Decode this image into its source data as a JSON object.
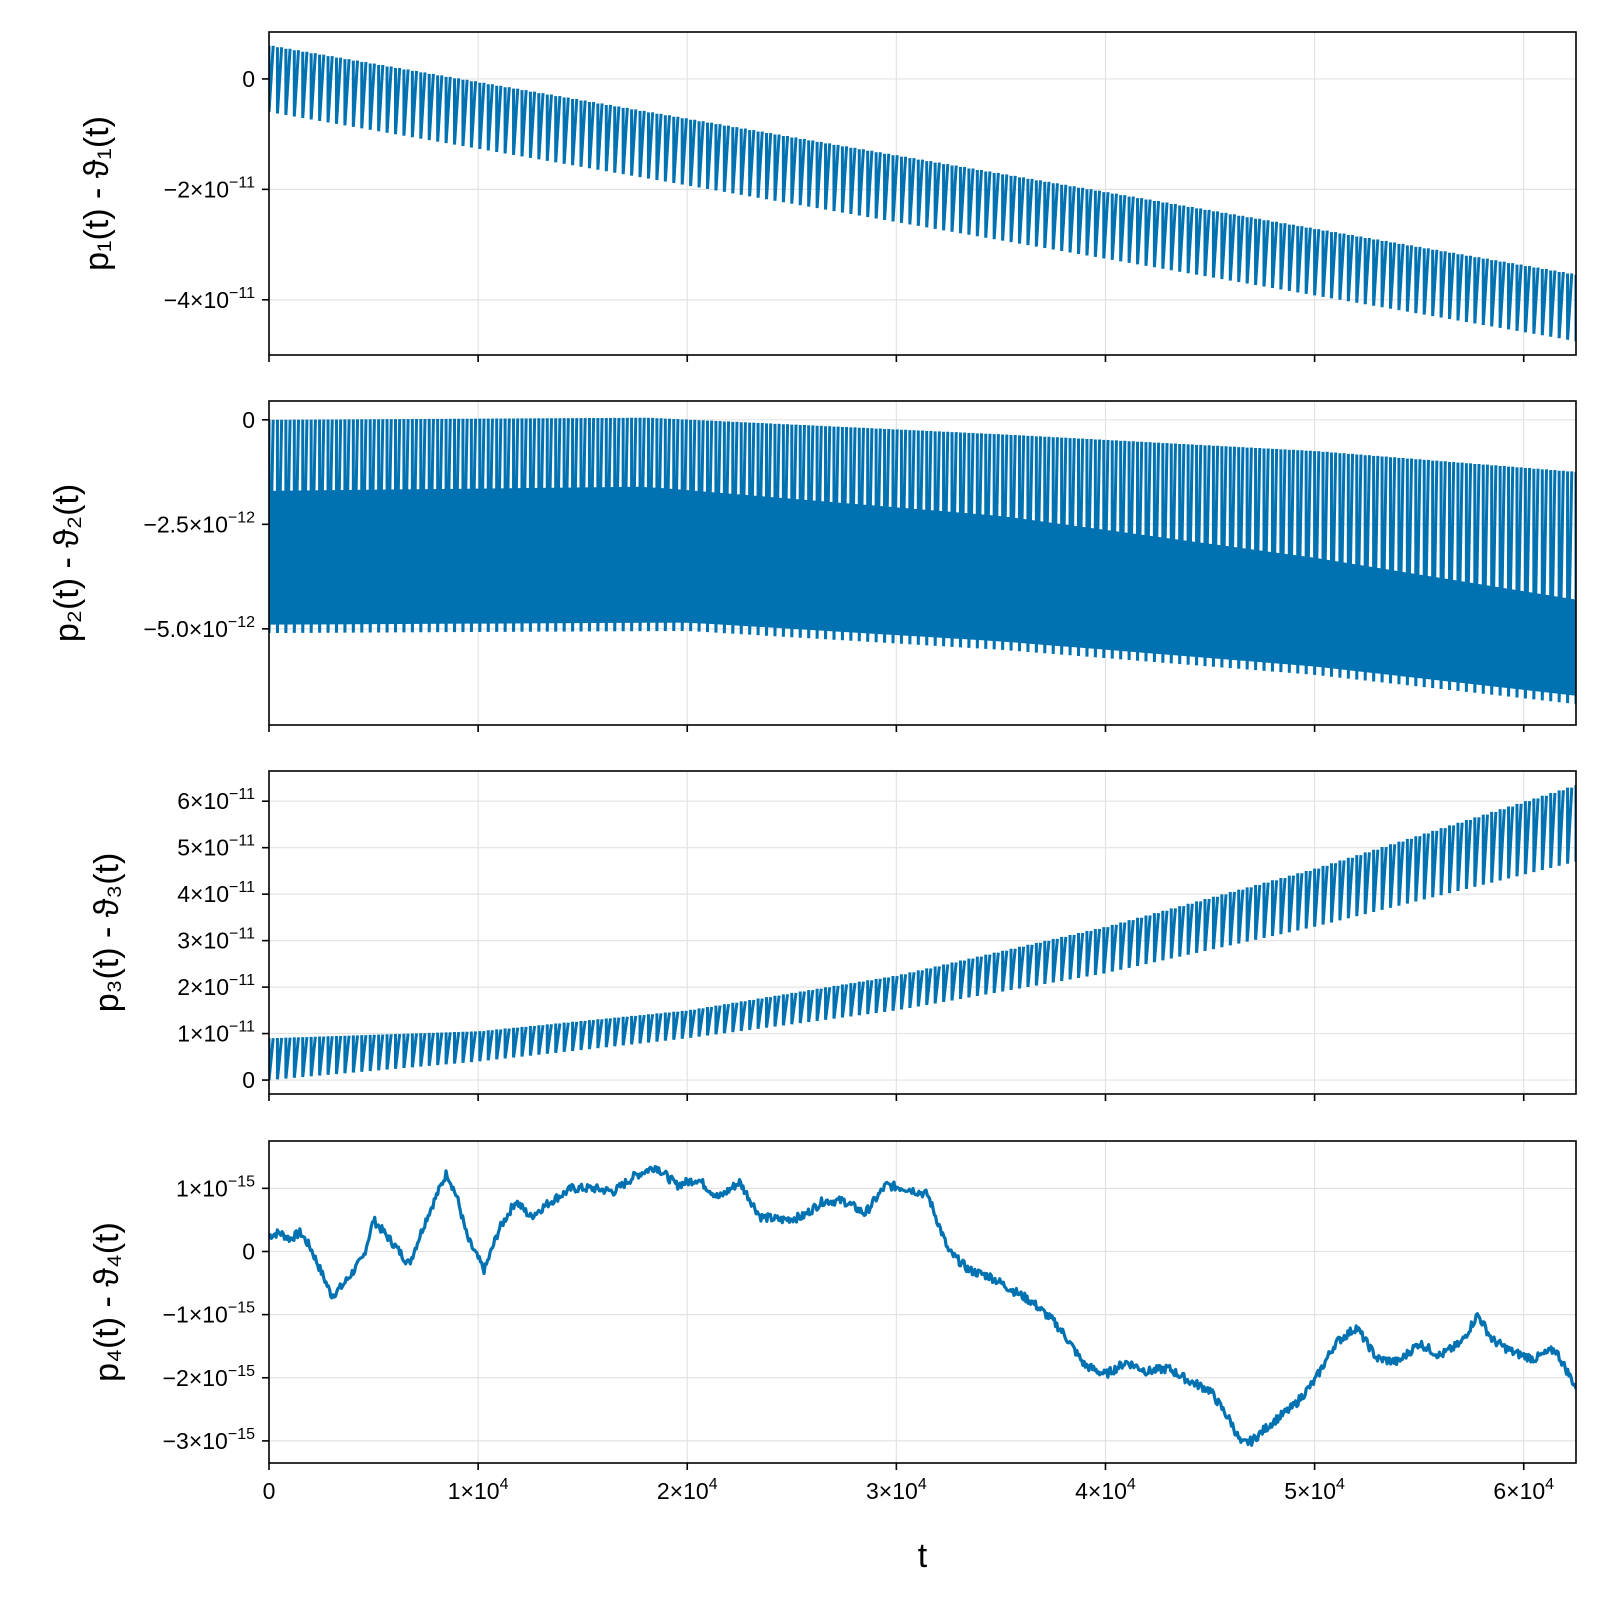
{
  "colors": {
    "series": "#0072b2",
    "grid": "#e3e3e3",
    "frame": "#000000"
  },
  "chart_data": [
    {
      "type": "line",
      "ylabel": "p₁(t) - ϑ₁(t)",
      "xlim": [
        0,
        62500
      ],
      "ylim": [
        -5e-11,
        8.5e-12
      ],
      "yticks": [
        {
          "value": 0,
          "label": "0"
        },
        {
          "value": -2e-11,
          "label": "−2×10",
          "exp": "−11"
        },
        {
          "value": -4e-11,
          "label": "−4×10",
          "exp": "−11"
        }
      ],
      "series": [
        {
          "style": "oscillating-band",
          "center_start": 0,
          "center_end": -4.15e-11,
          "amplitude": 6e-12,
          "cycles": 155
        }
      ]
    },
    {
      "type": "line",
      "ylabel": "p₂(t) - ϑ₂(t)",
      "xlim": [
        0,
        62500
      ],
      "ylim": [
        -7.3e-12,
        4.5e-13
      ],
      "yticks": [
        {
          "value": 0,
          "label": "0"
        },
        {
          "value": -2.5e-12,
          "label": "−2.5×10",
          "exp": "−12"
        },
        {
          "value": -5e-12,
          "label": "−5.0×10",
          "exp": "−12"
        }
      ],
      "series": [
        {
          "style": "oscillating-band",
          "upper": [
            [
              0,
              0.0
            ],
            [
              18000,
              5e-14
            ],
            [
              35000,
              -3.5e-13
            ],
            [
              50000,
              -7.5e-13
            ],
            [
              62500,
              -1.25e-12
            ]
          ],
          "lower": [
            [
              0,
              -5.1e-12
            ],
            [
              20000,
              -5.05e-12
            ],
            [
              35000,
              -5.5e-12
            ],
            [
              50000,
              -6.1e-12
            ],
            [
              62500,
              -6.8e-12
            ]
          ],
          "dense_upper": [
            [
              0,
              -1.7e-12
            ],
            [
              18000,
              -1.6e-12
            ],
            [
              35000,
              -2.3e-12
            ],
            [
              50000,
              -3.3e-12
            ],
            [
              62500,
              -4.3e-12
            ]
          ],
          "cycles": 155
        }
      ]
    },
    {
      "type": "line",
      "ylabel": "p₃(t) - ϑ₃(t)",
      "xlim": [
        0,
        62500
      ],
      "ylim": [
        -3e-12,
        6.65e-11
      ],
      "yticks": [
        {
          "value": 0,
          "label": "0"
        },
        {
          "value": 1e-11,
          "label": "1×10",
          "exp": "−11"
        },
        {
          "value": 2e-11,
          "label": "2×10",
          "exp": "−11"
        },
        {
          "value": 3e-11,
          "label": "3×10",
          "exp": "−11"
        },
        {
          "value": 4e-11,
          "label": "4×10",
          "exp": "−11"
        },
        {
          "value": 5e-11,
          "label": "5×10",
          "exp": "−11"
        },
        {
          "value": 6e-11,
          "label": "6×10",
          "exp": "−11"
        }
      ],
      "series": [
        {
          "style": "oscillating-band",
          "lower": [
            [
              0,
              0.0
            ],
            [
              10000,
              4e-12
            ],
            [
              20000,
              9e-12
            ],
            [
              30000,
              1.5e-11
            ],
            [
              40000,
              2.3e-11
            ],
            [
              50000,
              3.3e-11
            ],
            [
              62500,
              4.7e-11
            ]
          ],
          "upper": [
            [
              0,
              9e-12
            ],
            [
              10000,
              1.05e-11
            ],
            [
              20000,
              1.5e-11
            ],
            [
              30000,
              2.25e-11
            ],
            [
              40000,
              3.3e-11
            ],
            [
              50000,
              4.55e-11
            ],
            [
              62500,
              6.35e-11
            ]
          ],
          "cycles": 155
        }
      ]
    },
    {
      "type": "line",
      "ylabel": "p₄(t) - ϑ₄(t)",
      "xlabel": "t",
      "xlim": [
        0,
        62500
      ],
      "ylim": [
        -3.35e-15,
        1.75e-15
      ],
      "yticks": [
        {
          "value": 1e-15,
          "label": "1×10",
          "exp": "−15"
        },
        {
          "value": 0,
          "label": "0"
        },
        {
          "value": -1e-15,
          "label": "−1×10",
          "exp": "−15"
        },
        {
          "value": -2e-15,
          "label": "−2×10",
          "exp": "−15"
        },
        {
          "value": -3e-15,
          "label": "−3×10",
          "exp": "−15"
        }
      ],
      "xticks": [
        {
          "value": 0,
          "label": "0"
        },
        {
          "value": 10000,
          "label": "1×10",
          "exp": "4"
        },
        {
          "value": 20000,
          "label": "2×10",
          "exp": "4"
        },
        {
          "value": 30000,
          "label": "3×10",
          "exp": "4"
        },
        {
          "value": 40000,
          "label": "4×10",
          "exp": "4"
        },
        {
          "value": 50000,
          "label": "5×10",
          "exp": "4"
        },
        {
          "value": 60000,
          "label": "6×10",
          "exp": "4"
        }
      ],
      "series": [
        {
          "style": "random-walk",
          "x": [
            0,
            500,
            1000,
            1500,
            2000,
            3000,
            3500,
            4500,
            5000,
            6000,
            6700,
            7500,
            8500,
            9000,
            9500,
            10300,
            11000,
            11800,
            12500,
            13500,
            14500,
            15500,
            16500,
            17500,
            18500,
            19500,
            20500,
            21500,
            22500,
            23500,
            24500,
            25500,
            26500,
            27500,
            28500,
            29500,
            30500,
            31500,
            32500,
            33500,
            34500,
            35500,
            36500,
            37500,
            38000,
            39000,
            40000,
            41000,
            42000,
            43000,
            44000,
            45000,
            46000,
            46500,
            47000,
            48000,
            49000,
            50000,
            51000,
            52000,
            53000,
            54000,
            55000,
            56000,
            57000,
            57800,
            58500,
            59500,
            60500,
            61500,
            62500
          ],
          "y": [
            2.5e-16,
            3e-16,
            2e-16,
            3e-16,
            5e-17,
            -7e-16,
            -5.5e-16,
            -1e-16,
            5e-16,
            1e-16,
            -2e-16,
            5e-16,
            1.25e-15,
            8.5e-16,
            2e-16,
            -3e-16,
            3.5e-16,
            8e-16,
            5.5e-16,
            8e-16,
            1e-15,
            1e-15,
            9.5e-16,
            1.2e-15,
            1.35e-15,
            1.05e-15,
            1.15e-15,
            8.5e-16,
            1.1e-15,
            5.5e-16,
            5e-16,
            5.5e-16,
            8e-16,
            8e-16,
            6e-16,
            1.05e-15,
            1e-15,
            9e-16,
            0.0,
            -3e-16,
            -4e-16,
            -6e-16,
            -8e-16,
            -1.1e-15,
            -1.3e-15,
            -1.8e-15,
            -1.95e-15,
            -1.75e-15,
            -1.9e-15,
            -1.85e-15,
            -2.05e-15,
            -2.2e-15,
            -2.7e-15,
            -3.05e-15,
            -3e-15,
            -2.7e-15,
            -2.45e-15,
            -2.05e-15,
            -1.45e-15,
            -1.2e-15,
            -1.7e-15,
            -1.75e-15,
            -1.45e-15,
            -1.65e-15,
            -1.45e-15,
            -1e-15,
            -1.4e-15,
            -1.6e-15,
            -1.7e-15,
            -1.55e-15,
            -2.15e-15
          ]
        }
      ]
    }
  ]
}
